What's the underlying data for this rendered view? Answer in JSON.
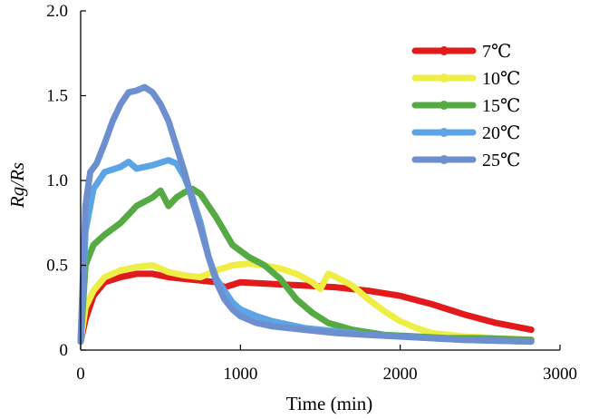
{
  "chart_data": {
    "type": "line",
    "title": "",
    "xlabel": "Time (min)",
    "ylabel": "Rg/Rs",
    "xlim": [
      0,
      3000
    ],
    "ylim": [
      0,
      2.0
    ],
    "xticks": [
      0,
      1000,
      2000,
      3000
    ],
    "yticks": [
      0,
      0.5,
      1.0,
      1.5,
      2.0
    ],
    "xtick_labels": [
      "0",
      "1000",
      "2000",
      "3000"
    ],
    "ytick_labels": [
      "0",
      "0.5",
      "1.0",
      "1.5",
      "2.0"
    ],
    "grid": false,
    "legend_position": "top-right",
    "series": [
      {
        "name": "7℃",
        "color": "#e31a1c",
        "x": [
          0,
          30,
          80,
          150,
          250,
          350,
          450,
          550,
          650,
          750,
          850,
          900,
          1000,
          1200,
          1400,
          1600,
          1800,
          2000,
          2200,
          2400,
          2600,
          2820
        ],
        "y": [
          0.05,
          0.18,
          0.32,
          0.4,
          0.43,
          0.45,
          0.45,
          0.43,
          0.42,
          0.41,
          0.4,
          0.37,
          0.4,
          0.39,
          0.38,
          0.37,
          0.35,
          0.32,
          0.27,
          0.21,
          0.16,
          0.12
        ]
      },
      {
        "name": "10℃",
        "color": "#eeee44",
        "x": [
          0,
          30,
          80,
          150,
          250,
          350,
          450,
          550,
          650,
          750,
          850,
          950,
          1050,
          1150,
          1250,
          1350,
          1450,
          1500,
          1550,
          1600,
          1700,
          1800,
          1900,
          2000,
          2100,
          2200,
          2400,
          2600,
          2820
        ],
        "y": [
          0.05,
          0.25,
          0.35,
          0.43,
          0.47,
          0.49,
          0.5,
          0.46,
          0.44,
          0.43,
          0.47,
          0.5,
          0.51,
          0.5,
          0.48,
          0.45,
          0.4,
          0.36,
          0.45,
          0.43,
          0.38,
          0.3,
          0.23,
          0.17,
          0.13,
          0.1,
          0.08,
          0.07,
          0.06
        ]
      },
      {
        "name": "15℃",
        "color": "#55aa44",
        "x": [
          0,
          30,
          80,
          150,
          250,
          350,
          450,
          500,
          550,
          600,
          650,
          700,
          750,
          850,
          950,
          1050,
          1150,
          1250,
          1350,
          1450,
          1550,
          1700,
          1900,
          2100,
          2300,
          2500,
          2820
        ],
        "y": [
          0.05,
          0.5,
          0.62,
          0.68,
          0.75,
          0.85,
          0.9,
          0.94,
          0.85,
          0.9,
          0.93,
          0.95,
          0.92,
          0.78,
          0.62,
          0.55,
          0.5,
          0.42,
          0.3,
          0.22,
          0.16,
          0.12,
          0.09,
          0.08,
          0.07,
          0.07,
          0.06
        ]
      },
      {
        "name": "20℃",
        "color": "#5ba4e6",
        "x": [
          0,
          30,
          80,
          150,
          250,
          300,
          350,
          450,
          550,
          600,
          650,
          700,
          750,
          800,
          850,
          900,
          950,
          1000,
          1100,
          1200,
          1400,
          1600,
          1800,
          2000,
          2200,
          2400,
          2820
        ],
        "y": [
          0.05,
          0.7,
          0.95,
          1.05,
          1.08,
          1.11,
          1.07,
          1.09,
          1.12,
          1.1,
          1.02,
          0.9,
          0.75,
          0.55,
          0.42,
          0.35,
          0.28,
          0.24,
          0.2,
          0.17,
          0.13,
          0.11,
          0.09,
          0.08,
          0.07,
          0.06,
          0.05
        ]
      },
      {
        "name": "25℃",
        "color": "#6d8fd0",
        "x": [
          0,
          30,
          60,
          100,
          150,
          200,
          250,
          300,
          350,
          400,
          450,
          500,
          550,
          600,
          650,
          700,
          750,
          800,
          850,
          900,
          950,
          1000,
          1100,
          1200,
          1400,
          1600,
          1800,
          2000,
          2200,
          2400,
          2820
        ],
        "y": [
          0.05,
          0.85,
          1.05,
          1.1,
          1.22,
          1.35,
          1.45,
          1.52,
          1.53,
          1.55,
          1.52,
          1.45,
          1.35,
          1.2,
          1.05,
          0.88,
          0.72,
          0.55,
          0.4,
          0.3,
          0.24,
          0.2,
          0.16,
          0.14,
          0.12,
          0.1,
          0.09,
          0.08,
          0.07,
          0.06,
          0.05
        ]
      }
    ]
  }
}
